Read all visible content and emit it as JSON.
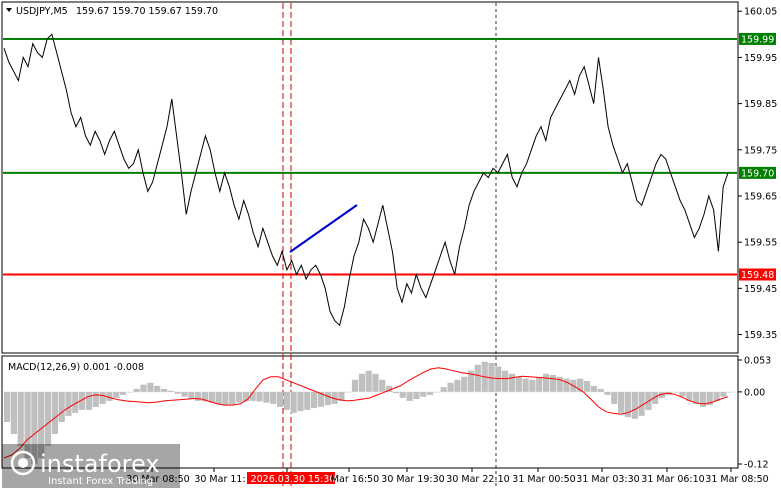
{
  "chart_data": {
    "type": "candlestick-line",
    "symbol_header": {
      "symbol": "USDJPY,M5",
      "ohlc": "159.67 159.70 159.67 159.70"
    },
    "price_axis": {
      "ylim": [
        159.31,
        160.07
      ],
      "ticks": [
        "160.05",
        "159.95",
        "159.85",
        "159.75",
        "159.65",
        "159.55",
        "159.45",
        "159.35"
      ]
    },
    "levels": [
      {
        "label": "159.99",
        "value": 159.99,
        "color": "#008000"
      },
      {
        "label": "159.70",
        "value": 159.7,
        "color": "#008000"
      },
      {
        "label": "159.48",
        "value": 159.48,
        "color": "#ff0000"
      }
    ],
    "price_series": [
      159.97,
      159.94,
      159.92,
      159.9,
      159.95,
      159.93,
      159.98,
      159.96,
      159.95,
      159.99,
      160.0,
      159.96,
      159.92,
      159.88,
      159.83,
      159.8,
      159.82,
      159.78,
      159.76,
      159.79,
      159.77,
      159.74,
      159.77,
      159.79,
      159.76,
      159.73,
      159.71,
      159.72,
      159.75,
      159.7,
      159.66,
      159.68,
      159.72,
      159.76,
      159.8,
      159.86,
      159.78,
      159.7,
      159.61,
      159.66,
      159.7,
      159.74,
      159.78,
      159.75,
      159.7,
      159.66,
      159.7,
      159.67,
      159.63,
      159.6,
      159.64,
      159.61,
      159.57,
      159.54,
      159.58,
      159.55,
      159.52,
      159.5,
      159.53,
      159.49,
      159.51,
      159.48,
      159.5,
      159.47,
      159.49,
      159.5,
      159.48,
      159.45,
      159.4,
      159.38,
      159.37,
      159.41,
      159.47,
      159.52,
      159.55,
      159.6,
      159.58,
      159.55,
      159.59,
      159.63,
      159.58,
      159.53,
      159.45,
      159.42,
      159.46,
      159.44,
      159.48,
      159.45,
      159.43,
      159.46,
      159.49,
      159.52,
      159.55,
      159.51,
      159.48,
      159.54,
      159.58,
      159.63,
      159.66,
      159.68,
      159.7,
      159.69,
      159.71,
      159.7,
      159.72,
      159.74,
      159.69,
      159.67,
      159.7,
      159.72,
      159.75,
      159.78,
      159.8,
      159.77,
      159.82,
      159.84,
      159.86,
      159.88,
      159.9,
      159.87,
      159.91,
      159.93,
      159.89,
      159.85,
      159.95,
      159.88,
      159.8,
      159.76,
      159.73,
      159.7,
      159.72,
      159.68,
      159.64,
      159.63,
      159.66,
      159.69,
      159.72,
      159.74,
      159.73,
      159.7,
      159.67,
      159.64,
      159.62,
      159.59,
      159.56,
      159.58,
      159.61,
      159.65,
      159.62,
      159.53,
      159.67,
      159.7
    ],
    "price_series_note_removed": true,
    "x_tick_labels": [
      "30 Mar 08:50",
      "30 Mar 11:",
      "2026.03.30 15:30",
      "Mar 16:50",
      "30 Mar 19:30",
      "30 Mar 22:10",
      "31 Mar 00:50",
      "31 Mar 03:30",
      "31 Mar 06:10",
      "31 Mar 08:50"
    ],
    "macd": {
      "label": "MACD(12,26,9) 0.001 -0.008",
      "ylim": [
        -0.125,
        0.058
      ],
      "ticks": [
        "0.053",
        "0.00",
        "-0.12"
      ],
      "histogram": [
        -0.05,
        -0.07,
        -0.09,
        -0.11,
        -0.12,
        -0.11,
        -0.09,
        -0.07,
        -0.05,
        -0.04,
        -0.035,
        -0.03,
        -0.03,
        -0.025,
        -0.02,
        -0.015,
        -0.01,
        -0.005,
        0.0,
        0.005,
        0.012,
        0.015,
        0.01,
        0.005,
        0.002,
        -0.003,
        -0.008,
        -0.012,
        -0.015,
        -0.016,
        -0.018,
        -0.02,
        -0.022,
        -0.021,
        -0.018,
        -0.016,
        -0.015,
        -0.016,
        -0.018,
        -0.02,
        -0.025,
        -0.03,
        -0.035,
        -0.032,
        -0.03,
        -0.027,
        -0.025,
        -0.022,
        -0.02,
        -0.015,
        0.0,
        0.02,
        0.03,
        0.035,
        0.03,
        0.02,
        0.01,
        -0.002,
        -0.01,
        -0.015,
        -0.012,
        -0.008,
        -0.005,
        0.0,
        0.008,
        0.015,
        0.02,
        0.025,
        0.035,
        0.045,
        0.05,
        0.048,
        0.042,
        0.035,
        0.03,
        0.025,
        0.022,
        0.02,
        0.025,
        0.03,
        0.028,
        0.025,
        0.022,
        0.02,
        0.022,
        0.018,
        0.01,
        0.005,
        -0.005,
        -0.02,
        -0.035,
        -0.042,
        -0.045,
        -0.04,
        -0.03,
        -0.02,
        -0.01,
        -0.005,
        0.0,
        -0.008,
        -0.015,
        -0.02,
        -0.025,
        -0.022,
        -0.015,
        -0.008,
        0.0
      ],
      "signal_line": [
        -0.11,
        -0.105,
        -0.095,
        -0.08,
        -0.07,
        -0.06,
        -0.05,
        -0.04,
        -0.03,
        -0.022,
        -0.015,
        -0.008,
        -0.005,
        -0.006,
        -0.01,
        -0.013,
        -0.015,
        -0.016,
        -0.017,
        -0.018,
        -0.017,
        -0.015,
        -0.014,
        -0.013,
        -0.012,
        -0.011,
        -0.012,
        -0.016,
        -0.02,
        -0.022,
        -0.022,
        -0.02,
        -0.012,
        0.005,
        0.02,
        0.025,
        0.025,
        0.02,
        0.015,
        0.01,
        0.005,
        0.0,
        -0.005,
        -0.01,
        -0.013,
        -0.015,
        -0.014,
        -0.012,
        -0.01,
        -0.005,
        0.0,
        0.005,
        0.01,
        0.018,
        0.025,
        0.032,
        0.038,
        0.04,
        0.038,
        0.035,
        0.032,
        0.03,
        0.028,
        0.025,
        0.023,
        0.022,
        0.022,
        0.024,
        0.026,
        0.025,
        0.024,
        0.023,
        0.022,
        0.02,
        0.015,
        0.008,
        0.0,
        -0.012,
        -0.025,
        -0.033,
        -0.036,
        -0.037,
        -0.034,
        -0.028,
        -0.02,
        -0.012,
        -0.005,
        -0.002,
        -0.004,
        -0.009,
        -0.015,
        -0.019,
        -0.02,
        -0.017,
        -0.012,
        -0.008
      ]
    }
  },
  "watermark": {
    "brand": "instaforex",
    "tagline": "Instant Forex Trading"
  },
  "colors": {
    "price_line": "#000000",
    "support_resistance": "#008000",
    "red_level": "#ff0000",
    "trend_segment": "#0000cd",
    "vertical_dash_red": "#cc0000",
    "histogram": "#c0c0c0",
    "signal": "#ff0000"
  }
}
